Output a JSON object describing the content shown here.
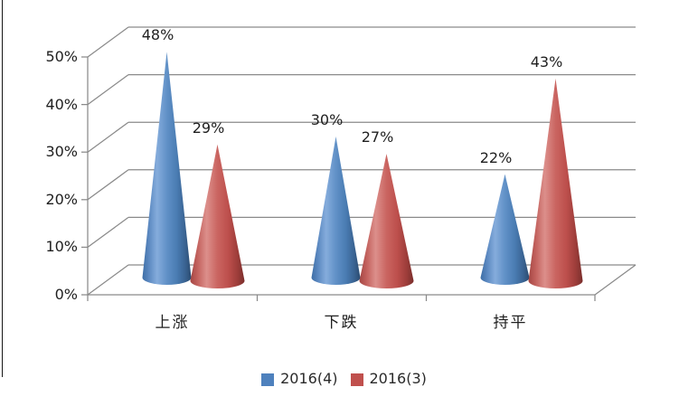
{
  "chart_data": {
    "type": "bar",
    "subtype": "3d-cone",
    "title": "",
    "xlabel": "",
    "ylabel": "",
    "categories": [
      "上涨",
      "下跌",
      "持平"
    ],
    "series": [
      {
        "name": "2016(4)",
        "color": "#4E81BD",
        "values": [
          48,
          30,
          22
        ],
        "data_labels": [
          "48%",
          "30%",
          "22%"
        ]
      },
      {
        "name": "2016(3)",
        "color": "#C0504D",
        "values": [
          29,
          27,
          43
        ],
        "data_labels": [
          "29%",
          "27%",
          "43%"
        ]
      }
    ],
    "yticks": [
      "0%",
      "10%",
      "20%",
      "30%",
      "40%",
      "50%"
    ],
    "ylim": [
      0,
      50
    ],
    "grid": true,
    "legend_position": "bottom",
    "grid_color": "#8a8a8a",
    "background_color": "#ffffff"
  }
}
